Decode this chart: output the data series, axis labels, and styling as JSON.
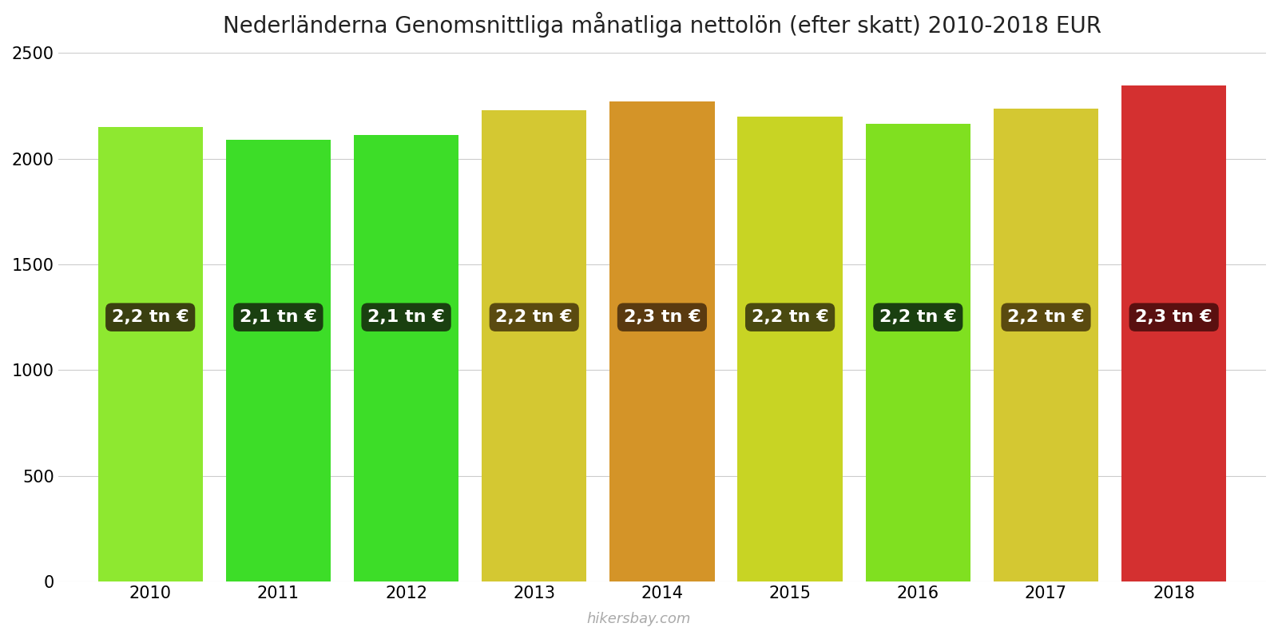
{
  "years": [
    2010,
    2011,
    2012,
    2013,
    2014,
    2015,
    2016,
    2017,
    2018
  ],
  "values": [
    2150,
    2090,
    2110,
    2230,
    2270,
    2200,
    2165,
    2235,
    2345
  ],
  "labels": [
    "2,2 tn €",
    "2,1 tn €",
    "2,1 tn €",
    "2,2 tn €",
    "2,3 tn €",
    "2,2 tn €",
    "2,2 tn €",
    "2,2 tn €",
    "2,3 tn €"
  ],
  "bar_colors": [
    "#8ee830",
    "#3ddd28",
    "#3ddd28",
    "#d4c832",
    "#d49428",
    "#c8d424",
    "#80e020",
    "#d4c832",
    "#d43030"
  ],
  "label_bg_colors": [
    "#3a4010",
    "#1a4010",
    "#1a4010",
    "#5a4a10",
    "#5a3a10",
    "#4a4a10",
    "#1a4010",
    "#5a4a10",
    "#5a1010"
  ],
  "title": "Nederländerna Genomsnittliga månatliga nettolön (efter skatt) 2010-2018 EUR",
  "ylim": [
    0,
    2500
  ],
  "yticks": [
    0,
    500,
    1000,
    1500,
    2000,
    2500
  ],
  "watermark": "hikersbay.com",
  "title_fontsize": 20,
  "label_fontsize": 16,
  "tick_fontsize": 15,
  "bar_width": 0.82
}
